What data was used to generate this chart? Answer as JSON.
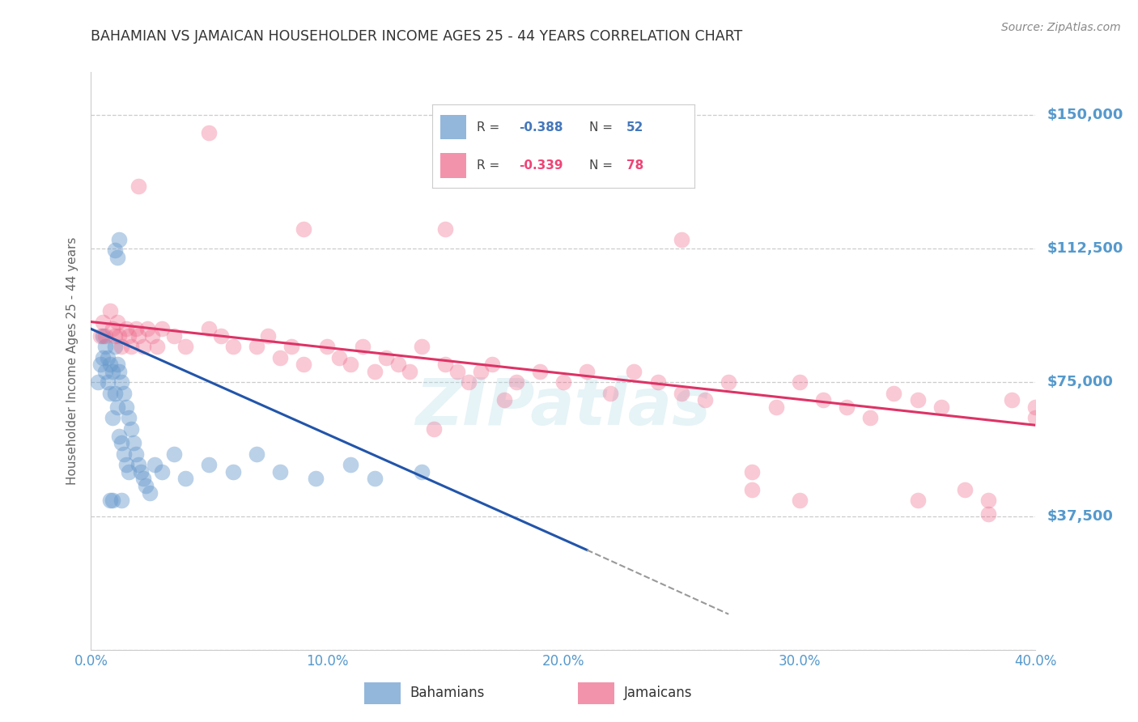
{
  "title": "BAHAMIAN VS JAMAICAN HOUSEHOLDER INCOME AGES 25 - 44 YEARS CORRELATION CHART",
  "source": "Source: ZipAtlas.com",
  "ylabel": "Householder Income Ages 25 - 44 years",
  "xlim": [
    0.0,
    40.0
  ],
  "ylim": [
    0,
    162000
  ],
  "bahamian_color": "#6699cc",
  "jamaican_color": "#ee6688",
  "bahamian_label": "Bahamians",
  "jamaican_label": "Jamaicans",
  "axis_label_color": "#5599cc",
  "title_color": "#333333",
  "grid_color": "#cccccc",
  "background_color": "#ffffff",
  "watermark": "ZIPatlas",
  "ytick_vals": [
    0,
    37500,
    75000,
    112500,
    150000
  ],
  "ytick_labels": [
    "",
    "$37,500",
    "$75,000",
    "$112,500",
    "$150,000"
  ],
  "xtick_vals": [
    0.0,
    10.0,
    20.0,
    30.0,
    40.0
  ],
  "xtick_labels": [
    "0.0%",
    "10.0%",
    "20.0%",
    "30.0%",
    "40.0%"
  ],
  "bah_r": "R = -0.388",
  "bah_n": "N = 52",
  "jam_r": "R = -0.339",
  "jam_n": "N = 78",
  "bah_r_color": "#4477bb",
  "bah_n_color": "#4477bb",
  "jam_r_color": "#ee4477",
  "jam_n_color": "#ee4477",
  "bahamian_x": [
    0.3,
    0.4,
    0.5,
    0.5,
    0.6,
    0.6,
    0.7,
    0.7,
    0.8,
    0.8,
    0.9,
    0.9,
    1.0,
    1.0,
    1.1,
    1.1,
    1.2,
    1.2,
    1.3,
    1.3,
    1.4,
    1.4,
    1.5,
    1.5,
    1.6,
    1.6,
    1.7,
    1.8,
    1.9,
    2.0,
    2.1,
    2.2,
    2.3,
    2.5,
    2.7,
    3.0,
    3.5,
    4.0,
    5.0,
    6.0,
    7.0,
    8.0,
    9.5,
    11.0,
    12.0,
    14.0,
    1.0,
    1.1,
    1.2,
    0.8,
    0.9,
    1.3
  ],
  "bahamian_y": [
    75000,
    80000,
    88000,
    82000,
    85000,
    78000,
    82000,
    75000,
    80000,
    72000,
    78000,
    65000,
    85000,
    72000,
    80000,
    68000,
    78000,
    60000,
    75000,
    58000,
    72000,
    55000,
    68000,
    52000,
    65000,
    50000,
    62000,
    58000,
    55000,
    52000,
    50000,
    48000,
    46000,
    44000,
    52000,
    50000,
    55000,
    48000,
    52000,
    50000,
    55000,
    50000,
    48000,
    52000,
    48000,
    50000,
    112000,
    110000,
    115000,
    42000,
    42000,
    42000
  ],
  "jamaican_x": [
    0.4,
    0.5,
    0.6,
    0.8,
    0.9,
    1.0,
    1.1,
    1.2,
    1.3,
    1.5,
    1.6,
    1.7,
    1.9,
    2.0,
    2.2,
    2.4,
    2.6,
    2.8,
    3.0,
    3.5,
    4.0,
    5.0,
    5.5,
    6.0,
    7.0,
    7.5,
    8.0,
    8.5,
    9.0,
    10.0,
    10.5,
    11.0,
    11.5,
    12.0,
    12.5,
    13.0,
    13.5,
    14.0,
    14.5,
    15.0,
    15.5,
    16.0,
    16.5,
    17.0,
    17.5,
    18.0,
    19.0,
    20.0,
    21.0,
    22.0,
    23.0,
    24.0,
    25.0,
    26.0,
    27.0,
    28.0,
    29.0,
    30.0,
    31.0,
    32.0,
    33.0,
    34.0,
    35.0,
    36.0,
    37.0,
    38.0,
    39.0,
    40.0,
    2.0,
    5.0,
    9.0,
    15.0,
    25.0,
    30.0,
    35.0,
    40.0,
    28.0,
    38.0
  ],
  "jamaican_y": [
    88000,
    92000,
    88000,
    95000,
    90000,
    88000,
    92000,
    88000,
    85000,
    90000,
    88000,
    85000,
    90000,
    88000,
    85000,
    90000,
    88000,
    85000,
    90000,
    88000,
    85000,
    90000,
    88000,
    85000,
    85000,
    88000,
    82000,
    85000,
    80000,
    85000,
    82000,
    80000,
    85000,
    78000,
    82000,
    80000,
    78000,
    85000,
    62000,
    80000,
    78000,
    75000,
    78000,
    80000,
    70000,
    75000,
    78000,
    75000,
    78000,
    72000,
    78000,
    75000,
    72000,
    70000,
    75000,
    50000,
    68000,
    75000,
    70000,
    68000,
    65000,
    72000,
    70000,
    68000,
    45000,
    42000,
    70000,
    68000,
    130000,
    145000,
    118000,
    118000,
    115000,
    42000,
    42000,
    65000,
    45000,
    38000
  ],
  "bah_reg_x0": 0.0,
  "bah_reg_y0": 90000,
  "bah_reg_x1": 21.0,
  "bah_reg_y1": 28000,
  "bah_reg_dash_x0": 21.0,
  "bah_reg_dash_y0": 28000,
  "bah_reg_dash_x1": 27.0,
  "bah_reg_dash_y1": 10000,
  "jam_reg_x0": 0.0,
  "jam_reg_y0": 92000,
  "jam_reg_x1": 40.0,
  "jam_reg_y1": 63000
}
